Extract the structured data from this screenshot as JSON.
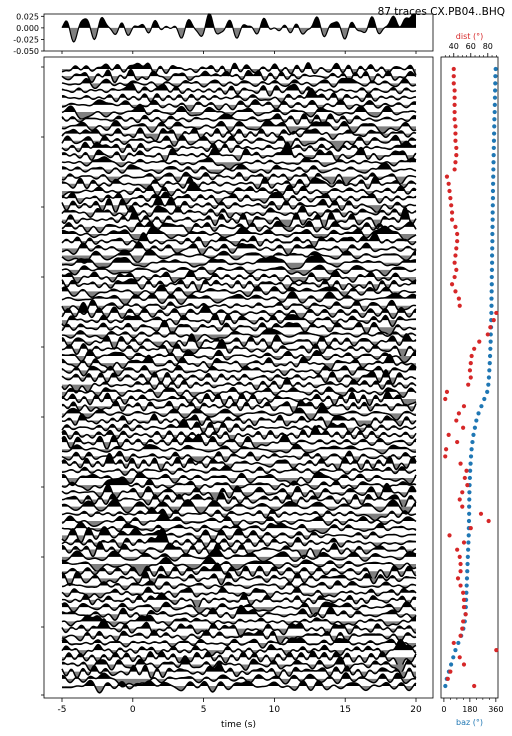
{
  "title": "87 traces  CX.PB04..BHQ",
  "colors": {
    "trace": "#000000",
    "dist": "#d62728",
    "baz": "#1f77b4"
  },
  "chart_data": [
    {
      "type": "line",
      "name": "stack",
      "xlim": [
        -5,
        20
      ],
      "ylim": [
        -0.05,
        0.03
      ],
      "yticks": [
        0.025,
        0.0,
        -0.025,
        -0.05
      ],
      "ytick_labels": [
        "0.025",
        "0.000",
        "-0.025",
        "-0.050"
      ],
      "fill": "positive black, negative grey"
    },
    {
      "type": "line",
      "name": "record-section",
      "trace_count": 87,
      "xlim": [
        -5,
        20
      ],
      "xticks": [
        -5,
        0,
        5,
        10,
        15,
        20
      ],
      "xtick_labels": [
        "-5",
        "0",
        "5",
        "10",
        "15",
        "20"
      ],
      "xlabel": "time (s)",
      "fill": "positive black, negative grey"
    },
    {
      "type": "scatter",
      "name": "dist-baz",
      "top_axis": {
        "label": "dist (°)",
        "xlim": [
          25,
          92
        ],
        "xticks": [
          40,
          60,
          80
        ],
        "xtick_labels": [
          "40",
          "60",
          "80"
        ]
      },
      "bottom_axis": {
        "label": "baz (°)",
        "xlim": [
          -20,
          375
        ],
        "xticks": [
          0,
          180,
          360
        ],
        "xtick_labels": [
          "0",
          "180",
          "360"
        ]
      },
      "baz": [
        359,
        357,
        356,
        355,
        354,
        353,
        352,
        350,
        349,
        348,
        347,
        346,
        345,
        344,
        343,
        342,
        341,
        340,
        340,
        339,
        338,
        338,
        337,
        336,
        336,
        335,
        334,
        334,
        333,
        332,
        332,
        331,
        330,
        330,
        329,
        328,
        327,
        325,
        324,
        322,
        320,
        318,
        315,
        312,
        308,
        300,
        280,
        260,
        240,
        225,
        215,
        205,
        198,
        192,
        188,
        185,
        182,
        180,
        178,
        177,
        176,
        175,
        175,
        174,
        173,
        172,
        170,
        168,
        166,
        164,
        162,
        160,
        158,
        156,
        154,
        152,
        150,
        145,
        135,
        120,
        100,
        80,
        65,
        50,
        35,
        20,
        10
      ],
      "dist": [
        40,
        40,
        40,
        41,
        41,
        41,
        41,
        41,
        42,
        42,
        42,
        43,
        43,
        42,
        41,
        32,
        34,
        35,
        36,
        37,
        38,
        38,
        42,
        44,
        44,
        43,
        42,
        41,
        43,
        41,
        38,
        42,
        46,
        47,
        90,
        87,
        83,
        80,
        70,
        64,
        61,
        60,
        59,
        60,
        57,
        32,
        30,
        52,
        46,
        43,
        51,
        34,
        44,
        31,
        30,
        48,
        55,
        53,
        56,
        50,
        47,
        50,
        72,
        81,
        60,
        35,
        52,
        44,
        47,
        48,
        48,
        45,
        48,
        51,
        52,
        52,
        54,
        51,
        50,
        48,
        40,
        90,
        47,
        52,
        36,
        33,
        64
      ]
    }
  ]
}
